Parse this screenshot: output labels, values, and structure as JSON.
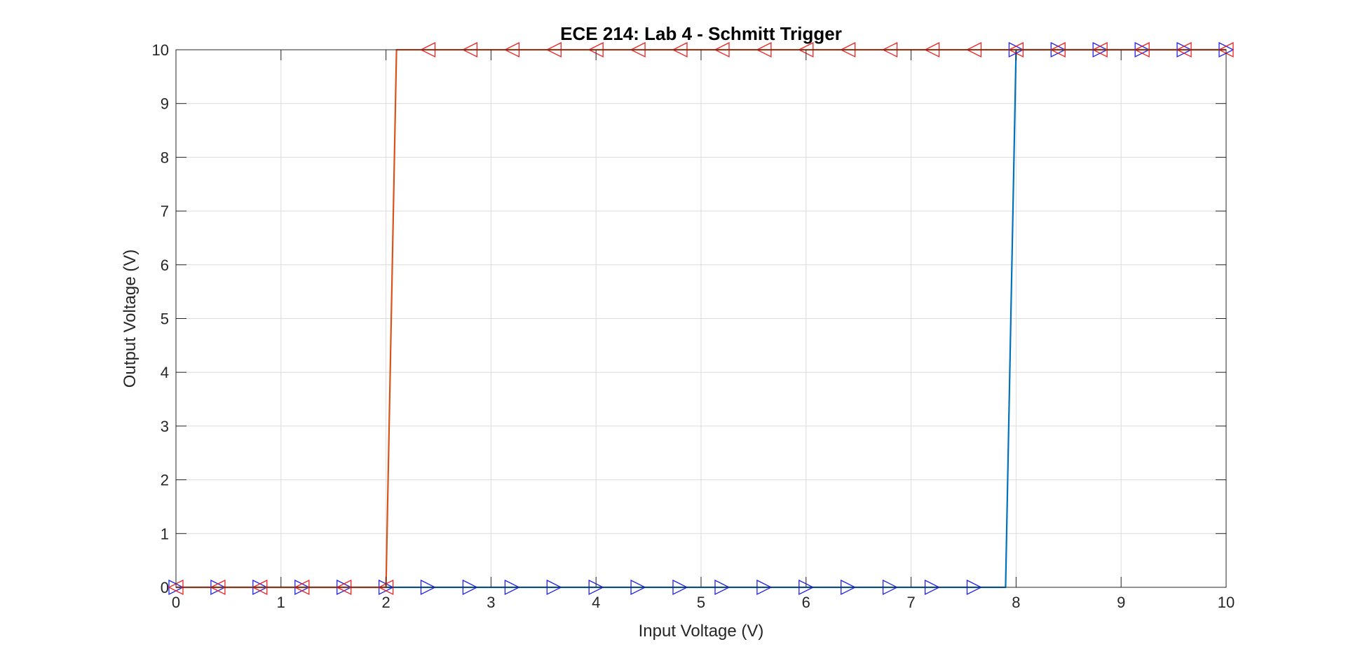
{
  "chart_data": {
    "type": "line",
    "title": "ECE 214: Lab 4 - Schmitt Trigger",
    "xlabel": "Input Voltage (V)",
    "ylabel": "Output Voltage (V)",
    "xlim": [
      0,
      10
    ],
    "ylim": [
      0,
      10
    ],
    "xticks": [
      0,
      1,
      2,
      3,
      4,
      5,
      6,
      7,
      8,
      9,
      10
    ],
    "yticks": [
      0,
      1,
      2,
      3,
      4,
      5,
      6,
      7,
      8,
      9,
      10
    ],
    "xtick_labels": [
      "0",
      "1",
      "2",
      "3",
      "4",
      "5",
      "6",
      "7",
      "8",
      "9",
      "10"
    ],
    "ytick_labels": [
      "0",
      "1",
      "2",
      "3",
      "4",
      "5",
      "6",
      "7",
      "8",
      "9",
      "10"
    ],
    "grid": true,
    "series": [
      {
        "direction": "increasing",
        "line_color": "#0072BD",
        "marker": "triangle-right",
        "marker_color": "#2222ee",
        "x": [
          0,
          0.4,
          0.8,
          1.2,
          1.6,
          2.0,
          2.4,
          2.8,
          3.2,
          3.6,
          4.0,
          4.4,
          4.8,
          5.2,
          5.6,
          6.0,
          6.4,
          6.8,
          7.2,
          7.6,
          7.9,
          8.0,
          8.4,
          8.8,
          9.2,
          9.6,
          10.0
        ],
        "y": [
          0,
          0,
          0,
          0,
          0,
          0,
          0,
          0,
          0,
          0,
          0,
          0,
          0,
          0,
          0,
          0,
          0,
          0,
          0,
          0,
          0,
          10,
          10,
          10,
          10,
          10,
          10
        ],
        "marker_x": [
          0,
          0.4,
          0.8,
          1.2,
          1.6,
          2.0,
          2.4,
          2.8,
          3.2,
          3.6,
          4.0,
          4.4,
          4.8,
          5.2,
          5.6,
          6.0,
          6.4,
          6.8,
          7.2,
          7.6,
          8.0,
          8.4,
          8.8,
          9.2,
          9.6,
          10.0
        ],
        "marker_y": [
          0,
          0,
          0,
          0,
          0,
          0,
          0,
          0,
          0,
          0,
          0,
          0,
          0,
          0,
          0,
          0,
          0,
          0,
          0,
          0,
          10,
          10,
          10,
          10,
          10,
          10
        ]
      },
      {
        "direction": "decreasing",
        "line_color": "#D95319",
        "marker": "triangle-left",
        "marker_color": "#ee2222",
        "x": [
          10.0,
          9.6,
          9.2,
          8.8,
          8.4,
          8.0,
          7.6,
          7.2,
          6.8,
          6.4,
          6.0,
          5.6,
          5.2,
          4.8,
          4.4,
          4.0,
          3.6,
          3.2,
          2.8,
          2.4,
          2.1,
          2.0,
          1.6,
          1.2,
          0.8,
          0.4,
          0
        ],
        "y": [
          10,
          10,
          10,
          10,
          10,
          10,
          10,
          10,
          10,
          10,
          10,
          10,
          10,
          10,
          10,
          10,
          10,
          10,
          10,
          10,
          10,
          0,
          0,
          0,
          0,
          0,
          0
        ],
        "marker_x": [
          10.0,
          9.6,
          9.2,
          8.8,
          8.4,
          8.0,
          7.6,
          7.2,
          6.8,
          6.4,
          6.0,
          5.6,
          5.2,
          4.8,
          4.4,
          4.0,
          3.6,
          3.2,
          2.8,
          2.4,
          2.0,
          1.6,
          1.2,
          0.8,
          0.4,
          0
        ],
        "marker_y": [
          10,
          10,
          10,
          10,
          10,
          10,
          10,
          10,
          10,
          10,
          10,
          10,
          10,
          10,
          10,
          10,
          10,
          10,
          10,
          10,
          0,
          0,
          0,
          0,
          0,
          0
        ]
      }
    ]
  }
}
